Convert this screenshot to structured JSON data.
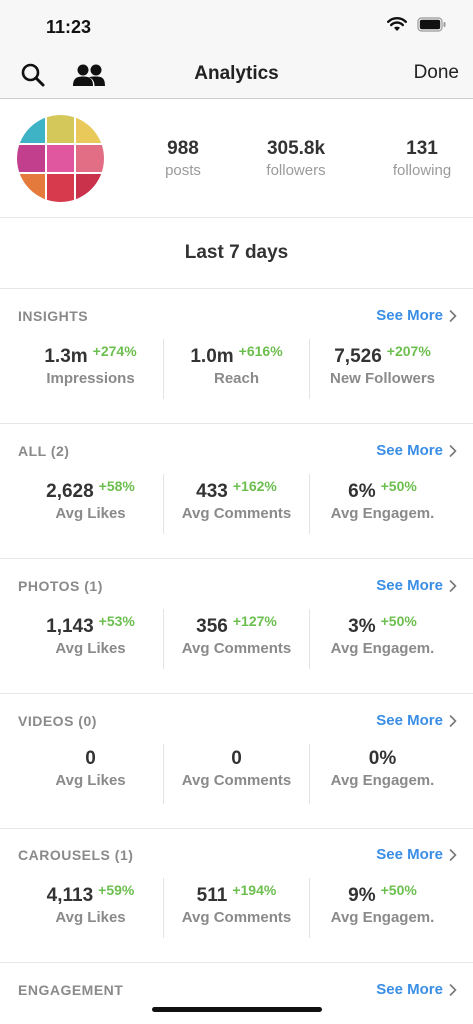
{
  "status": {
    "time": "11:23"
  },
  "nav": {
    "title": "Analytics",
    "done": "Done"
  },
  "profile": {
    "posts_num": "988",
    "posts_label": "posts",
    "followers_num": "305.8k",
    "followers_label": "followers",
    "following_num": "131",
    "following_label": "following",
    "avatar_colors": [
      "#3fb3c6",
      "#d4c85a",
      "#e8c95a",
      "#c23f8e",
      "#e057a0",
      "#e26e85",
      "#e57a3d",
      "#d63a4c",
      "#c9324a"
    ]
  },
  "period": "Last 7 days",
  "see_more": "See More",
  "colors": {
    "accent": "#3a8ee6",
    "positive": "#6cbf4f"
  },
  "sections": [
    {
      "title": "INSIGHTS",
      "metrics": [
        {
          "value": "1.3m",
          "delta": "+274%",
          "label": "Impressions"
        },
        {
          "value": "1.0m",
          "delta": "+616%",
          "label": "Reach"
        },
        {
          "value": "7,526",
          "delta": "+207%",
          "label": "New Followers"
        }
      ]
    },
    {
      "title": "ALL (2)",
      "metrics": [
        {
          "value": "2,628",
          "delta": "+58%",
          "label": "Avg Likes"
        },
        {
          "value": "433",
          "delta": "+162%",
          "label": "Avg Comments"
        },
        {
          "value": "6%",
          "delta": "+50%",
          "label": "Avg Engagem."
        }
      ]
    },
    {
      "title": "PHOTOS (1)",
      "metrics": [
        {
          "value": "1,143",
          "delta": "+53%",
          "label": "Avg Likes"
        },
        {
          "value": "356",
          "delta": "+127%",
          "label": "Avg Comments"
        },
        {
          "value": "3%",
          "delta": "+50%",
          "label": "Avg Engagem."
        }
      ]
    },
    {
      "title": "VIDEOS (0)",
      "metrics": [
        {
          "value": "0",
          "delta": "",
          "label": "Avg Likes"
        },
        {
          "value": "0",
          "delta": "",
          "label": "Avg Comments"
        },
        {
          "value": "0%",
          "delta": "",
          "label": "Avg Engagem."
        }
      ]
    },
    {
      "title": "CAROUSELS (1)",
      "metrics": [
        {
          "value": "4,113",
          "delta": "+59%",
          "label": "Avg Likes"
        },
        {
          "value": "511",
          "delta": "+194%",
          "label": "Avg Comments"
        },
        {
          "value": "9%",
          "delta": "+50%",
          "label": "Avg Engagem."
        }
      ]
    }
  ],
  "engagement": {
    "title": "ENGAGEMENT"
  }
}
